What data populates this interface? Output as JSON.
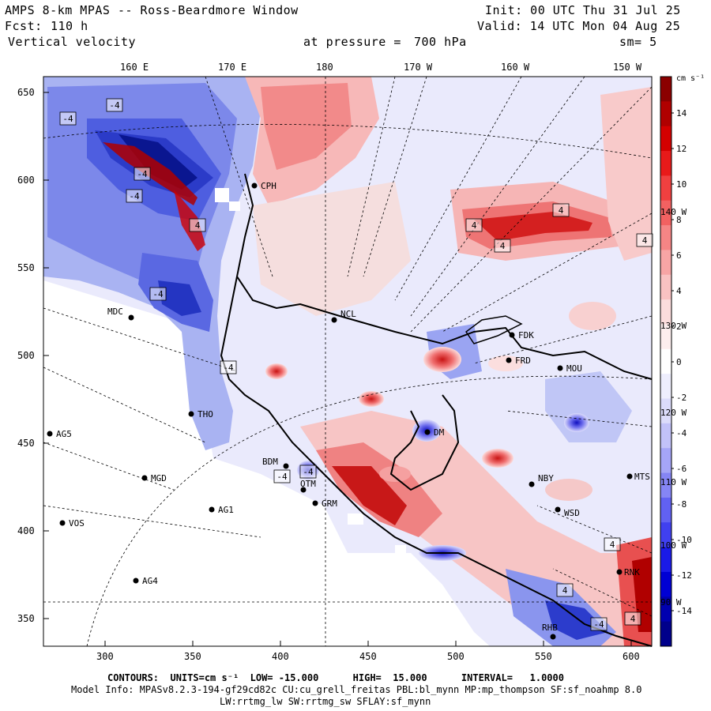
{
  "header": {
    "title": "AMPS 8-km MPAS -- Ross-Beardmore Window",
    "init": "Init: 00 UTC Thu 31 Jul 25",
    "fcst_label": "Fcst:",
    "fcst_value": "110 h",
    "valid": "Valid: 14 UTC Mon 04 Aug 25",
    "variable": "Vertical velocity",
    "pressure_label": "at pressure =",
    "pressure_value": "700 hPa",
    "smoothing": "sm= 5"
  },
  "axes": {
    "x_ticks": [
      "300",
      "350",
      "400",
      "450",
      "500",
      "550",
      "600"
    ],
    "y_ticks": [
      "650",
      "600",
      "550",
      "500",
      "450",
      "400",
      "350"
    ],
    "lon_top": [
      "160 E",
      "170 E",
      "180",
      "170 W",
      "160 W",
      "150 W"
    ],
    "lat_right": [
      "140 W",
      "130 W",
      "120 W",
      "110 W",
      "100 W",
      "90 W"
    ]
  },
  "colorbar": {
    "unit": "cm s⁻¹",
    "labels": [
      "14",
      "12",
      "10",
      "8",
      "6",
      "4",
      "2",
      "0",
      "-2",
      "-4",
      "-6",
      "-8",
      "-10",
      "-12",
      "-14"
    ],
    "colors": [
      "#8b0000",
      "#b00000",
      "#d40000",
      "#e81a1a",
      "#f04040",
      "#f26161",
      "#f58585",
      "#f7a5a5",
      "#f9c2c2",
      "#fbdcdc",
      "#fdeeee",
      "#ffffff",
      "#eeeefd",
      "#dcdcfb",
      "#c2c2f9",
      "#a5a5f7",
      "#8585f5",
      "#6161f2",
      "#4040f0",
      "#1a1ae8",
      "#0000d4",
      "#0000b0",
      "#00008b"
    ]
  },
  "stations": [
    {
      "code": "MDC"
    },
    {
      "code": "NCL"
    },
    {
      "code": "FDK"
    },
    {
      "code": "FRD"
    },
    {
      "code": "MOU"
    },
    {
      "code": "AG5"
    },
    {
      "code": "THO"
    },
    {
      "code": "DM"
    },
    {
      "code": "MGD"
    },
    {
      "code": "NBY"
    },
    {
      "code": "MTS"
    },
    {
      "code": "AG1"
    },
    {
      "code": "GRM"
    },
    {
      "code": "OTM"
    },
    {
      "code": "WSD"
    },
    {
      "code": "VOS"
    },
    {
      "code": "AG4"
    },
    {
      "code": "BDM"
    },
    {
      "code": "RNK"
    },
    {
      "code": "RHB"
    },
    {
      "code": "CPH"
    }
  ],
  "contour_labels": [
    "-4",
    "-4",
    "-4",
    "-4",
    "-4",
    "-4",
    "-4",
    "-4",
    "-4",
    "4",
    "4",
    "4",
    "4",
    "4",
    "4",
    "4",
    "4"
  ],
  "footer": {
    "contours": "CONTOURS:  UNITS=cm s⁻¹  LOW= -15.000      HIGH=  15.000      INTERVAL=   1.0000",
    "model_info": "Model Info: MPASv8.2.3-194-gf29cd82c CU:cu_grell_freitas PBL:bl_mynn MP:mp_thompson SF:sf_noahmp 8.0",
    "model_info2": "LW:rrtmg_lw SW:rrtmg_sw SFLAY:sf_mynn"
  }
}
